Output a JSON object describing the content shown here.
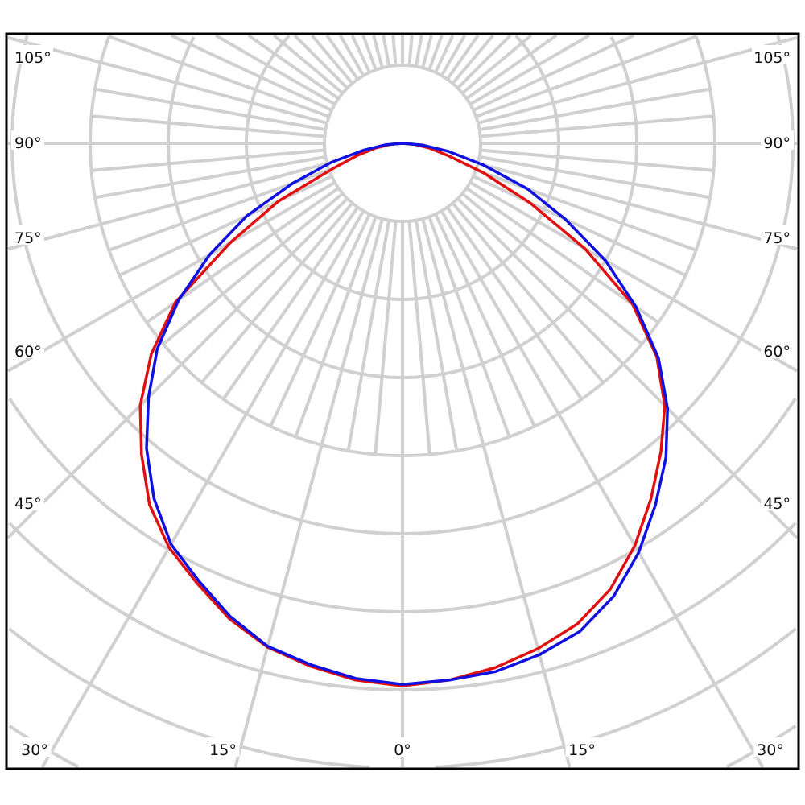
{
  "chart_data": {
    "type": "polar",
    "title": "",
    "angle_labels_left": [
      "105°",
      "90°",
      "75°",
      "60°",
      "45°"
    ],
    "angle_labels_right": [
      "105°",
      "90°",
      "75°",
      "60°",
      "45°"
    ],
    "angle_labels_bottom": [
      "30°",
      "15°",
      "0°",
      "15°",
      "30°"
    ],
    "angle_grid_step_deg": 15,
    "minor_angle_step_deg": 5,
    "radial_rings": 10,
    "grid": true,
    "grid_color": "#d0d0d0",
    "angles_deg": [
      0,
      5,
      10,
      15,
      20,
      25,
      30,
      35,
      40,
      45,
      50,
      55,
      60,
      65,
      70,
      75,
      80,
      85,
      90
    ],
    "series": [
      {
        "color": "#e01010",
        "left": [
          6.95,
          6.9,
          6.8,
          6.68,
          6.48,
          6.22,
          5.98,
          5.65,
          5.2,
          4.75,
          4.2,
          3.55,
          2.55,
          1.75,
          0.95,
          0.6,
          0.35,
          0.15,
          0
        ],
        "right": [
          6.95,
          6.9,
          6.82,
          6.7,
          6.55,
          6.3,
          5.95,
          5.55,
          5.15,
          4.75,
          4.25,
          3.6,
          2.7,
          1.8,
          1.1,
          0.6,
          0.35,
          0.15,
          0
        ]
      },
      {
        "color": "#1010e0",
        "left": [
          6.93,
          6.88,
          6.78,
          6.67,
          6.45,
          6.18,
          5.93,
          5.55,
          5.1,
          4.6,
          4.1,
          3.5,
          2.85,
          2.2,
          1.5,
          0.95,
          0.5,
          0.22,
          0
        ],
        "right": [
          6.93,
          6.9,
          6.87,
          6.78,
          6.65,
          6.4,
          6.05,
          5.65,
          5.25,
          4.8,
          4.28,
          3.65,
          3.0,
          2.3,
          1.7,
          1.07,
          0.6,
          0.25,
          0
        ]
      }
    ]
  }
}
